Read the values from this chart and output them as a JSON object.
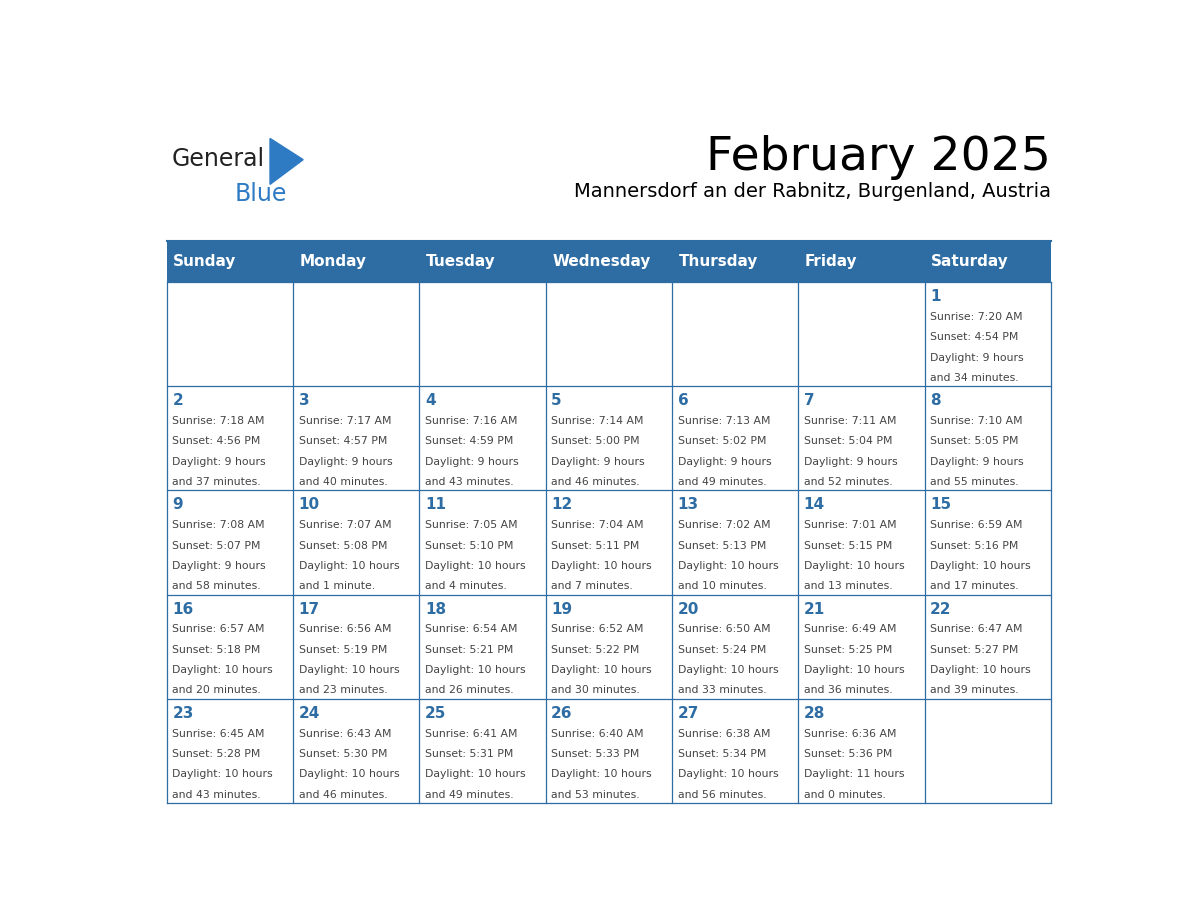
{
  "title": "February 2025",
  "subtitle": "Mannersdorf an der Rabnitz, Burgenland, Austria",
  "days_of_week": [
    "Sunday",
    "Monday",
    "Tuesday",
    "Wednesday",
    "Thursday",
    "Friday",
    "Saturday"
  ],
  "header_bg": "#2E6DA4",
  "header_text": "#FFFFFF",
  "border_color": "#2E6DA4",
  "day_num_color": "#2E6DA4",
  "text_color": "#444444",
  "logo_general_color": "#222222",
  "logo_blue_color": "#2E7BC4",
  "calendar_data": [
    {
      "day": 1,
      "col": 6,
      "row": 0,
      "sunrise": "7:20 AM",
      "sunset": "4:54 PM",
      "daylight": "9 hours and 34 minutes."
    },
    {
      "day": 2,
      "col": 0,
      "row": 1,
      "sunrise": "7:18 AM",
      "sunset": "4:56 PM",
      "daylight": "9 hours and 37 minutes."
    },
    {
      "day": 3,
      "col": 1,
      "row": 1,
      "sunrise": "7:17 AM",
      "sunset": "4:57 PM",
      "daylight": "9 hours and 40 minutes."
    },
    {
      "day": 4,
      "col": 2,
      "row": 1,
      "sunrise": "7:16 AM",
      "sunset": "4:59 PM",
      "daylight": "9 hours and 43 minutes."
    },
    {
      "day": 5,
      "col": 3,
      "row": 1,
      "sunrise": "7:14 AM",
      "sunset": "5:00 PM",
      "daylight": "9 hours and 46 minutes."
    },
    {
      "day": 6,
      "col": 4,
      "row": 1,
      "sunrise": "7:13 AM",
      "sunset": "5:02 PM",
      "daylight": "9 hours and 49 minutes."
    },
    {
      "day": 7,
      "col": 5,
      "row": 1,
      "sunrise": "7:11 AM",
      "sunset": "5:04 PM",
      "daylight": "9 hours and 52 minutes."
    },
    {
      "day": 8,
      "col": 6,
      "row": 1,
      "sunrise": "7:10 AM",
      "sunset": "5:05 PM",
      "daylight": "9 hours and 55 minutes."
    },
    {
      "day": 9,
      "col": 0,
      "row": 2,
      "sunrise": "7:08 AM",
      "sunset": "5:07 PM",
      "daylight": "9 hours and 58 minutes."
    },
    {
      "day": 10,
      "col": 1,
      "row": 2,
      "sunrise": "7:07 AM",
      "sunset": "5:08 PM",
      "daylight": "10 hours and 1 minute."
    },
    {
      "day": 11,
      "col": 2,
      "row": 2,
      "sunrise": "7:05 AM",
      "sunset": "5:10 PM",
      "daylight": "10 hours and 4 minutes."
    },
    {
      "day": 12,
      "col": 3,
      "row": 2,
      "sunrise": "7:04 AM",
      "sunset": "5:11 PM",
      "daylight": "10 hours and 7 minutes."
    },
    {
      "day": 13,
      "col": 4,
      "row": 2,
      "sunrise": "7:02 AM",
      "sunset": "5:13 PM",
      "daylight": "10 hours and 10 minutes."
    },
    {
      "day": 14,
      "col": 5,
      "row": 2,
      "sunrise": "7:01 AM",
      "sunset": "5:15 PM",
      "daylight": "10 hours and 13 minutes."
    },
    {
      "day": 15,
      "col": 6,
      "row": 2,
      "sunrise": "6:59 AM",
      "sunset": "5:16 PM",
      "daylight": "10 hours and 17 minutes."
    },
    {
      "day": 16,
      "col": 0,
      "row": 3,
      "sunrise": "6:57 AM",
      "sunset": "5:18 PM",
      "daylight": "10 hours and 20 minutes."
    },
    {
      "day": 17,
      "col": 1,
      "row": 3,
      "sunrise": "6:56 AM",
      "sunset": "5:19 PM",
      "daylight": "10 hours and 23 minutes."
    },
    {
      "day": 18,
      "col": 2,
      "row": 3,
      "sunrise": "6:54 AM",
      "sunset": "5:21 PM",
      "daylight": "10 hours and 26 minutes."
    },
    {
      "day": 19,
      "col": 3,
      "row": 3,
      "sunrise": "6:52 AM",
      "sunset": "5:22 PM",
      "daylight": "10 hours and 30 minutes."
    },
    {
      "day": 20,
      "col": 4,
      "row": 3,
      "sunrise": "6:50 AM",
      "sunset": "5:24 PM",
      "daylight": "10 hours and 33 minutes."
    },
    {
      "day": 21,
      "col": 5,
      "row": 3,
      "sunrise": "6:49 AM",
      "sunset": "5:25 PM",
      "daylight": "10 hours and 36 minutes."
    },
    {
      "day": 22,
      "col": 6,
      "row": 3,
      "sunrise": "6:47 AM",
      "sunset": "5:27 PM",
      "daylight": "10 hours and 39 minutes."
    },
    {
      "day": 23,
      "col": 0,
      "row": 4,
      "sunrise": "6:45 AM",
      "sunset": "5:28 PM",
      "daylight": "10 hours and 43 minutes."
    },
    {
      "day": 24,
      "col": 1,
      "row": 4,
      "sunrise": "6:43 AM",
      "sunset": "5:30 PM",
      "daylight": "10 hours and 46 minutes."
    },
    {
      "day": 25,
      "col": 2,
      "row": 4,
      "sunrise": "6:41 AM",
      "sunset": "5:31 PM",
      "daylight": "10 hours and 49 minutes."
    },
    {
      "day": 26,
      "col": 3,
      "row": 4,
      "sunrise": "6:40 AM",
      "sunset": "5:33 PM",
      "daylight": "10 hours and 53 minutes."
    },
    {
      "day": 27,
      "col": 4,
      "row": 4,
      "sunrise": "6:38 AM",
      "sunset": "5:34 PM",
      "daylight": "10 hours and 56 minutes."
    },
    {
      "day": 28,
      "col": 5,
      "row": 4,
      "sunrise": "6:36 AM",
      "sunset": "5:36 PM",
      "daylight": "11 hours and 0 minutes."
    }
  ]
}
